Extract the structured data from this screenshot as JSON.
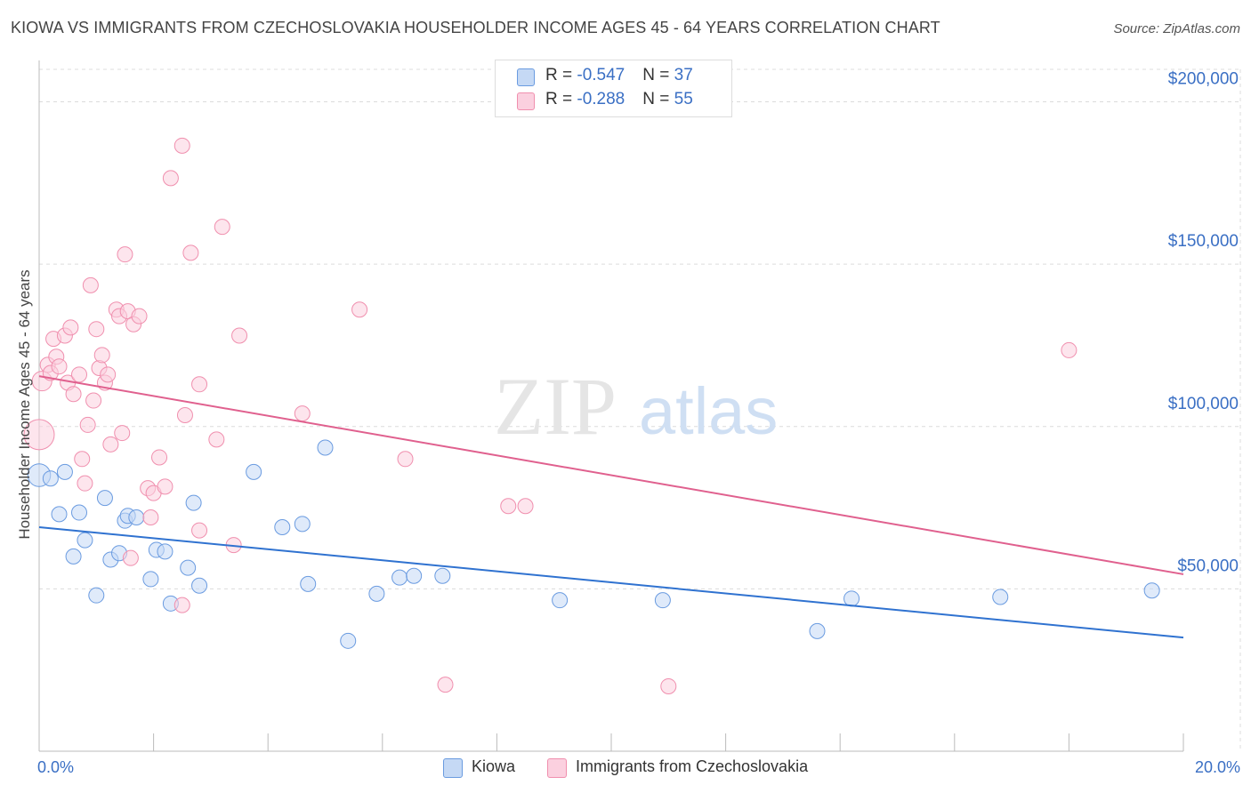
{
  "title": "KIOWA VS IMMIGRANTS FROM CZECHOSLOVAKIA HOUSEHOLDER INCOME AGES 45 - 64 YEARS CORRELATION CHART",
  "source": "Source: ZipAtlas.com",
  "watermark": {
    "zip": "ZIP",
    "atlas": "atlas"
  },
  "legend": {
    "rows": [
      {
        "r_label": "R = ",
        "r_value": "-0.547",
        "n_label": "N = ",
        "n_value": "37"
      },
      {
        "r_label": "R = ",
        "r_value": "-0.288",
        "n_label": "N = ",
        "n_value": "55"
      }
    ]
  },
  "chart_data": {
    "type": "scatter",
    "title": "KIOWA VS IMMIGRANTS FROM CZECHOSLOVAKIA HOUSEHOLDER INCOME AGES 45 - 64 YEARS CORRELATION CHART",
    "xlabel": "",
    "ylabel": "Householder Income Ages 45 - 64 years",
    "xlim": [
      0,
      20
    ],
    "ylim": [
      0,
      210000
    ],
    "x_tick_labels": [
      "0.0%",
      "20.0%"
    ],
    "y_ticks": [
      50000,
      100000,
      150000,
      200000
    ],
    "y_tick_labels": [
      "$50,000",
      "$100,000",
      "$150,000",
      "$200,000"
    ],
    "colors": {
      "kiowa": "#6a9be0",
      "czech": "#f08fae",
      "kiowa_line": "#2f72d0",
      "czech_line": "#e0608e",
      "tick_label": "#3a6fc4"
    },
    "series": [
      {
        "name": "Kiowa",
        "r": -0.547,
        "n": 37,
        "trend": {
          "x0": 0,
          "y0": 69000,
          "x1": 20,
          "y1": 35000
        },
        "points": [
          {
            "x": 0.0,
            "y": 85000,
            "s": 1.5
          },
          {
            "x": 0.2,
            "y": 84000
          },
          {
            "x": 0.35,
            "y": 73000
          },
          {
            "x": 0.45,
            "y": 86000
          },
          {
            "x": 0.6,
            "y": 60000
          },
          {
            "x": 0.7,
            "y": 73500
          },
          {
            "x": 0.8,
            "y": 65000
          },
          {
            "x": 1.0,
            "y": 48000
          },
          {
            "x": 1.15,
            "y": 78000
          },
          {
            "x": 1.25,
            "y": 59000
          },
          {
            "x": 1.4,
            "y": 61000
          },
          {
            "x": 1.5,
            "y": 71000
          },
          {
            "x": 1.55,
            "y": 72500
          },
          {
            "x": 1.7,
            "y": 72000
          },
          {
            "x": 1.95,
            "y": 53000
          },
          {
            "x": 2.05,
            "y": 62000
          },
          {
            "x": 2.2,
            "y": 61500
          },
          {
            "x": 2.3,
            "y": 45500
          },
          {
            "x": 2.6,
            "y": 56500
          },
          {
            "x": 2.7,
            "y": 76500
          },
          {
            "x": 2.8,
            "y": 51000
          },
          {
            "x": 3.75,
            "y": 86000
          },
          {
            "x": 4.25,
            "y": 69000
          },
          {
            "x": 4.6,
            "y": 70000
          },
          {
            "x": 4.7,
            "y": 51500
          },
          {
            "x": 5.0,
            "y": 93500
          },
          {
            "x": 5.4,
            "y": 34000
          },
          {
            "x": 5.9,
            "y": 48500
          },
          {
            "x": 6.3,
            "y": 53500
          },
          {
            "x": 6.55,
            "y": 54000
          },
          {
            "x": 7.05,
            "y": 54000
          },
          {
            "x": 9.1,
            "y": 46500
          },
          {
            "x": 10.9,
            "y": 46500
          },
          {
            "x": 13.6,
            "y": 37000
          },
          {
            "x": 14.2,
            "y": 47000
          },
          {
            "x": 16.8,
            "y": 47500
          },
          {
            "x": 19.45,
            "y": 49500
          }
        ]
      },
      {
        "name": "Immigrants from Czechoslovakia",
        "r": -0.288,
        "n": 55,
        "trend": {
          "x0": 0,
          "y0": 115500,
          "x1": 20,
          "y1": 54500
        },
        "points": [
          {
            "x": 0.0,
            "y": 97500,
            "s": 2.0
          },
          {
            "x": 0.05,
            "y": 114000,
            "s": 1.3
          },
          {
            "x": 0.15,
            "y": 119000
          },
          {
            "x": 0.2,
            "y": 116500
          },
          {
            "x": 0.25,
            "y": 127000
          },
          {
            "x": 0.3,
            "y": 121500
          },
          {
            "x": 0.35,
            "y": 118500
          },
          {
            "x": 0.45,
            "y": 128000
          },
          {
            "x": 0.5,
            "y": 113500
          },
          {
            "x": 0.55,
            "y": 130500
          },
          {
            "x": 0.6,
            "y": 110000
          },
          {
            "x": 0.7,
            "y": 116000
          },
          {
            "x": 0.75,
            "y": 90000
          },
          {
            "x": 0.8,
            "y": 82500
          },
          {
            "x": 0.85,
            "y": 100500
          },
          {
            "x": 0.9,
            "y": 143500
          },
          {
            "x": 0.95,
            "y": 108000
          },
          {
            "x": 1.0,
            "y": 130000
          },
          {
            "x": 1.05,
            "y": 118000
          },
          {
            "x": 1.1,
            "y": 122000
          },
          {
            "x": 1.15,
            "y": 113500
          },
          {
            "x": 1.2,
            "y": 116000
          },
          {
            "x": 1.25,
            "y": 94500
          },
          {
            "x": 1.35,
            "y": 136000
          },
          {
            "x": 1.4,
            "y": 134000
          },
          {
            "x": 1.45,
            "y": 98000
          },
          {
            "x": 1.5,
            "y": 153000
          },
          {
            "x": 1.55,
            "y": 135500
          },
          {
            "x": 1.6,
            "y": 59500
          },
          {
            "x": 1.65,
            "y": 131500
          },
          {
            "x": 1.75,
            "y": 134000
          },
          {
            "x": 1.9,
            "y": 81000
          },
          {
            "x": 1.95,
            "y": 72000
          },
          {
            "x": 2.0,
            "y": 79500
          },
          {
            "x": 2.1,
            "y": 90500
          },
          {
            "x": 2.2,
            "y": 81500
          },
          {
            "x": 2.3,
            "y": 176500
          },
          {
            "x": 2.5,
            "y": 45000
          },
          {
            "x": 2.5,
            "y": 186500
          },
          {
            "x": 2.55,
            "y": 103500
          },
          {
            "x": 2.65,
            "y": 153500
          },
          {
            "x": 2.8,
            "y": 68000
          },
          {
            "x": 2.8,
            "y": 113000
          },
          {
            "x": 3.1,
            "y": 96000
          },
          {
            "x": 3.2,
            "y": 161500
          },
          {
            "x": 3.4,
            "y": 63500
          },
          {
            "x": 3.5,
            "y": 128000
          },
          {
            "x": 4.6,
            "y": 104000
          },
          {
            "x": 5.6,
            "y": 136000
          },
          {
            "x": 6.4,
            "y": 90000
          },
          {
            "x": 7.1,
            "y": 20500
          },
          {
            "x": 8.2,
            "y": 75500
          },
          {
            "x": 8.5,
            "y": 75500
          },
          {
            "x": 11.0,
            "y": 20000
          },
          {
            "x": 18.0,
            "y": 123500
          }
        ]
      }
    ]
  }
}
